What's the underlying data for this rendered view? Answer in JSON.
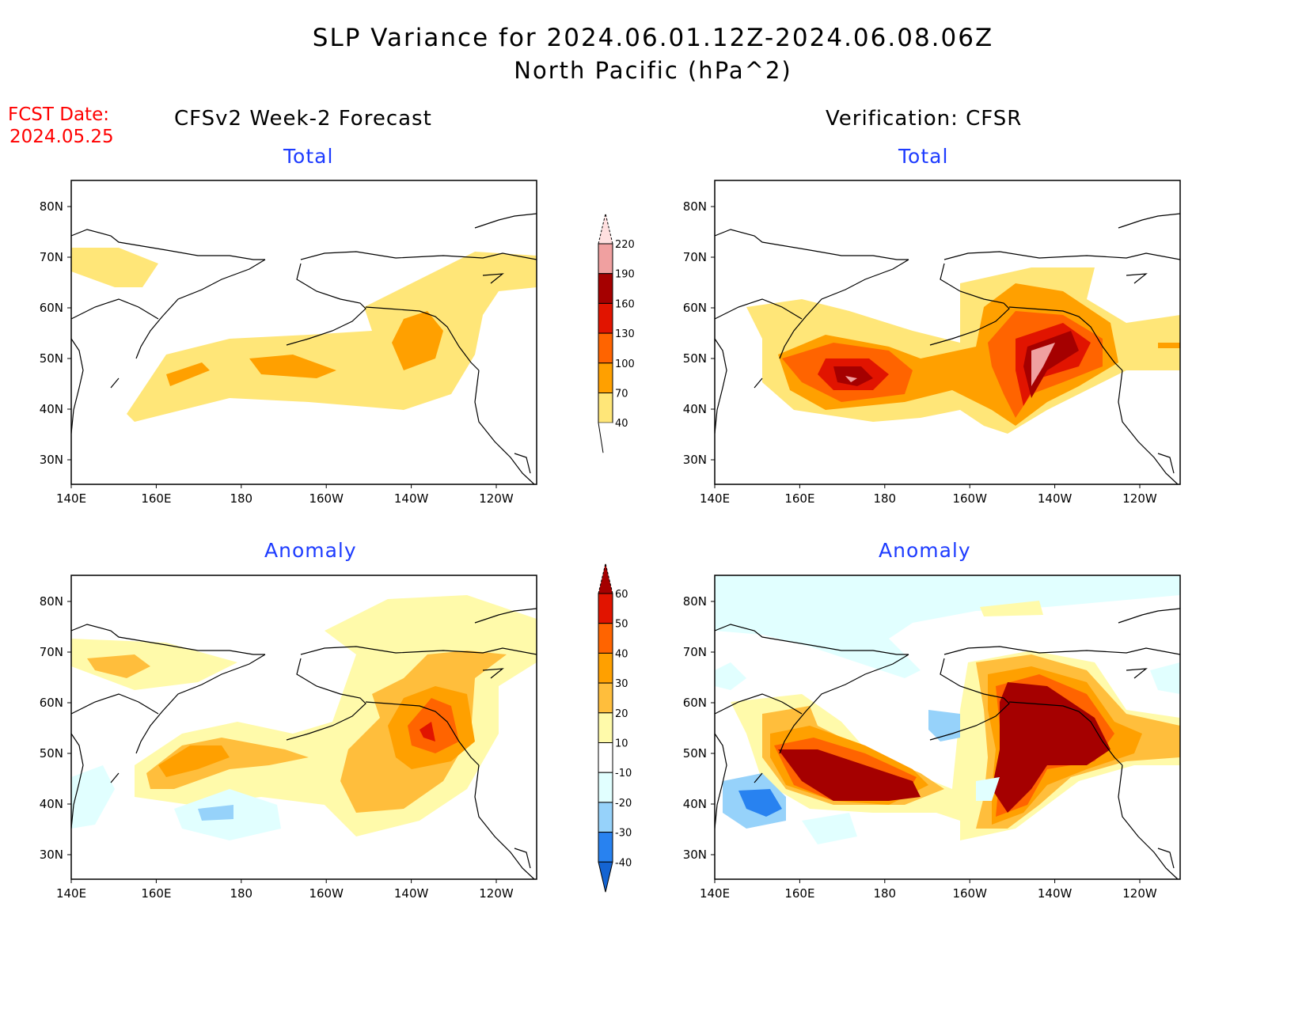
{
  "title": {
    "line1": "SLP Variance for 2024.06.01.12Z-2024.06.08.06Z",
    "line2": "North Pacific (hPa^2)"
  },
  "fcst_date": {
    "label": "FCST Date:",
    "value": "2024.05.25"
  },
  "columns": [
    {
      "heading": "CFSv2 Week-2 Forecast",
      "top_label": "Total",
      "bottom_label": "Anomaly"
    },
    {
      "heading": "Verification: CFSR",
      "top_label": "Total",
      "bottom_label": "Anomaly"
    }
  ],
  "axes": {
    "lon_ticks": [
      "140E",
      "160E",
      "180",
      "160W",
      "140W",
      "120W"
    ],
    "lat_ticks": [
      "80N",
      "70N",
      "60N",
      "50N",
      "40N",
      "30N"
    ]
  },
  "colorbars": {
    "total": {
      "labels": [
        "220",
        "190",
        "160",
        "130",
        "100",
        "70",
        "40"
      ],
      "colors": [
        "#ffe0e0",
        "#f0a0a0",
        "#a50000",
        "#e11400",
        "#ff6400",
        "#ffa000",
        "#ffe678",
        "#ffffff"
      ]
    },
    "anomaly": {
      "labels": [
        "60",
        "50",
        "40",
        "30",
        "20",
        "10",
        "-10",
        "-20",
        "-30",
        "-40"
      ],
      "colors": [
        "#a50000",
        "#e11400",
        "#ff6400",
        "#ffa000",
        "#ffbe3c",
        "#fffaaa",
        "#ffffff",
        "#e1ffff",
        "#96d2fa",
        "#2882f0",
        "#1464d2"
      ]
    }
  }
}
